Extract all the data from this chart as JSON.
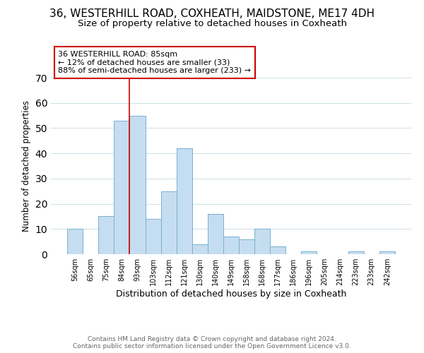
{
  "title": "36, WESTERHILL ROAD, COXHEATH, MAIDSTONE, ME17 4DH",
  "subtitle": "Size of property relative to detached houses in Coxheath",
  "xlabel": "Distribution of detached houses by size in Coxheath",
  "ylabel": "Number of detached properties",
  "bar_labels": [
    "56sqm",
    "65sqm",
    "75sqm",
    "84sqm",
    "93sqm",
    "103sqm",
    "112sqm",
    "121sqm",
    "130sqm",
    "140sqm",
    "149sqm",
    "158sqm",
    "168sqm",
    "177sqm",
    "186sqm",
    "196sqm",
    "205sqm",
    "214sqm",
    "223sqm",
    "233sqm",
    "242sqm"
  ],
  "bar_values": [
    10,
    0,
    15,
    53,
    55,
    14,
    25,
    42,
    4,
    16,
    7,
    6,
    10,
    3,
    0,
    1,
    0,
    0,
    1,
    0,
    1
  ],
  "bar_color": "#c5ddf0",
  "bar_edge_color": "#7ab0d0",
  "ylim": [
    0,
    70
  ],
  "yticks": [
    0,
    10,
    20,
    30,
    40,
    50,
    60,
    70
  ],
  "annotation_text": "36 WESTERHILL ROAD: 85sqm\n← 12% of detached houses are smaller (33)\n88% of semi-detached houses are larger (233) →",
  "annotation_box_color": "#ffffff",
  "annotation_box_edge_color": "#cc0000",
  "footer_line1": "Contains HM Land Registry data © Crown copyright and database right 2024.",
  "footer_line2": "Contains public sector information licensed under the Open Government Licence v3.0.",
  "background_color": "#ffffff",
  "property_line_x": 3.5,
  "title_fontsize": 11,
  "subtitle_fontsize": 9.5,
  "ylabel_fontsize": 8.5,
  "xlabel_fontsize": 9,
  "tick_fontsize": 7,
  "annotation_fontsize": 8,
  "footer_fontsize": 6.5
}
